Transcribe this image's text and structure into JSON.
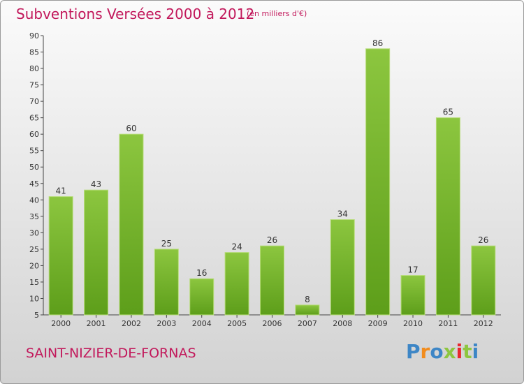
{
  "title": "Subventions Versées 2000 à 2012",
  "subtitle": "(en milliers d'€)",
  "commune": "SAINT-NIZIER-DE-FORNAS",
  "logo": {
    "text": "Proxiti",
    "colors": [
      "#3d86c6",
      "#f28c1c",
      "#3d86c6",
      "#8dc63f",
      "#e8282e",
      "#8dc63f",
      "#3d86c6"
    ]
  },
  "colors": {
    "bar": "#8cc63f",
    "bar_dark": "#5d9e1a",
    "title": "#c2185b"
  },
  "chart_data": {
    "type": "bar",
    "categories": [
      "2000",
      "2001",
      "2002",
      "2003",
      "2004",
      "2005",
      "2006",
      "2007",
      "2008",
      "2009",
      "2010",
      "2011",
      "2012"
    ],
    "values": [
      41,
      43,
      60,
      25,
      16,
      24,
      26,
      8,
      34,
      86,
      17,
      65,
      26
    ],
    "title": "Subventions Versées 2000 à 2012",
    "ylabel": "",
    "xlabel": "",
    "ylim": [
      5,
      90
    ],
    "yticks": [
      5,
      10,
      15,
      20,
      25,
      30,
      35,
      40,
      45,
      50,
      55,
      60,
      65,
      70,
      75,
      80,
      85,
      90
    ],
    "grid": false,
    "data_labels": true
  }
}
